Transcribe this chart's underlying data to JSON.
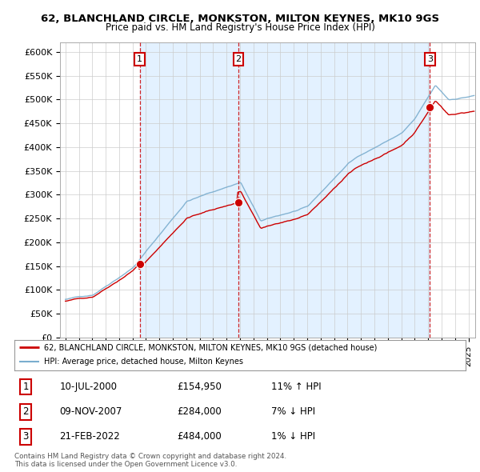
{
  "title": "62, BLANCHLAND CIRCLE, MONKSTON, MILTON KEYNES, MK10 9GS",
  "subtitle": "Price paid vs. HM Land Registry's House Price Index (HPI)",
  "ylim": [
    0,
    620000
  ],
  "yticks": [
    0,
    50000,
    100000,
    150000,
    200000,
    250000,
    300000,
    350000,
    400000,
    450000,
    500000,
    550000,
    600000
  ],
  "ytick_labels": [
    "£0",
    "£50K",
    "£100K",
    "£150K",
    "£200K",
    "£250K",
    "£300K",
    "£350K",
    "£400K",
    "£450K",
    "£500K",
    "£550K",
    "£600K"
  ],
  "red_line_color": "#cc0000",
  "blue_line_color": "#7aadce",
  "shade_color": "#ddeeff",
  "sale_marker_color": "#cc0000",
  "dashed_line_color": "#cc0000",
  "box_edgecolor": "#cc0000",
  "transaction1_date": "10-JUL-2000",
  "transaction1_price": "£154,950",
  "transaction1_hpi": "11% ↑ HPI",
  "transaction2_date": "09-NOV-2007",
  "transaction2_price": "£284,000",
  "transaction2_hpi": "7% ↓ HPI",
  "transaction3_date": "21-FEB-2022",
  "transaction3_price": "£484,000",
  "transaction3_hpi": "1% ↓ HPI",
  "legend_label_red": "62, BLANCHLAND CIRCLE, MONKSTON, MILTON KEYNES, MK10 9GS (detached house)",
  "legend_label_blue": "HPI: Average price, detached house, Milton Keynes",
  "footer1": "Contains HM Land Registry data © Crown copyright and database right 2024.",
  "footer2": "This data is licensed under the Open Government Licence v3.0.",
  "background_color": "#ffffff",
  "grid_color": "#cccccc",
  "sale1_x": 2000.54,
  "sale2_x": 2007.87,
  "sale3_x": 2022.13
}
